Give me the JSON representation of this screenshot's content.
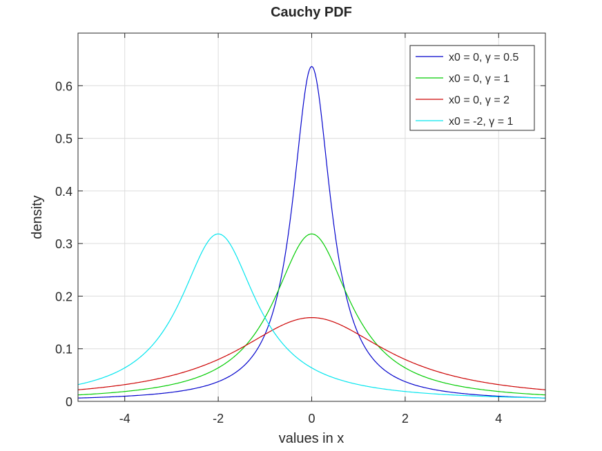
{
  "chart_data": {
    "type": "line",
    "title": "Cauchy PDF",
    "xlabel": "values in x",
    "ylabel": "density",
    "xlim": [
      -5,
      5
    ],
    "ylim": [
      0,
      0.7
    ],
    "xticks": [
      -4,
      -2,
      0,
      2,
      4
    ],
    "xtick_labels": [
      "-4",
      "-2",
      "0",
      "2",
      "4"
    ],
    "yticks": [
      0,
      0.1,
      0.2,
      0.3,
      0.4,
      0.5,
      0.6
    ],
    "ytick_labels": [
      "0",
      "0.1",
      "0.2",
      "0.3",
      "0.4",
      "0.5",
      "0.6"
    ],
    "grid": true,
    "legend_position": "top-right",
    "x": [
      -5,
      -4,
      -3,
      -2.5,
      -2,
      -1.5,
      -1,
      -0.75,
      -0.5,
      -0.25,
      0,
      0.25,
      0.5,
      0.75,
      1,
      1.5,
      2,
      3,
      4,
      5
    ],
    "series": [
      {
        "name": "x0 = 0, γ = 0.5",
        "color": "#0000cc",
        "x0": 0,
        "gamma": 0.5,
        "values": [
          0.0063,
          0.0098,
          0.0175,
          0.0245,
          0.0374,
          0.0637,
          0.1273,
          0.1959,
          0.3183,
          0.5093,
          0.6366,
          0.5093,
          0.3183,
          0.1959,
          0.1273,
          0.0637,
          0.0374,
          0.0175,
          0.0098,
          0.0063
        ]
      },
      {
        "name": "x0 = 0, γ = 1",
        "color": "#00cc00",
        "x0": 0,
        "gamma": 1,
        "values": [
          0.0122,
          0.0187,
          0.0318,
          0.0439,
          0.0637,
          0.0979,
          0.1592,
          0.2037,
          0.2546,
          0.2996,
          0.3183,
          0.2996,
          0.2546,
          0.2037,
          0.1592,
          0.0979,
          0.0637,
          0.0318,
          0.0187,
          0.0122
        ]
      },
      {
        "name": "x0 = 0, γ = 2",
        "color": "#cc0000",
        "x0": 0,
        "gamma": 2,
        "values": [
          0.022,
          0.0318,
          0.049,
          0.0621,
          0.0796,
          0.1019,
          0.1273,
          0.1395,
          0.1498,
          0.1567,
          0.1592,
          0.1567,
          0.1498,
          0.1395,
          0.1273,
          0.1019,
          0.0796,
          0.049,
          0.0318,
          0.022
        ]
      },
      {
        "name": "x0 = -2, γ = 1",
        "color": "#00e5ee",
        "x0": -2,
        "gamma": 1,
        "values": [
          0.0318,
          0.0637,
          0.1592,
          0.2546,
          0.3183,
          0.2546,
          0.1592,
          0.122,
          0.0979,
          0.0765,
          0.0637,
          0.0531,
          0.0439,
          0.0373,
          0.0318,
          0.0241,
          0.0187,
          0.0122,
          0.0087,
          0.0064
        ]
      }
    ]
  },
  "colors": {
    "axis": "#262626",
    "grid": "#dcdcdc",
    "background": "#ffffff"
  }
}
